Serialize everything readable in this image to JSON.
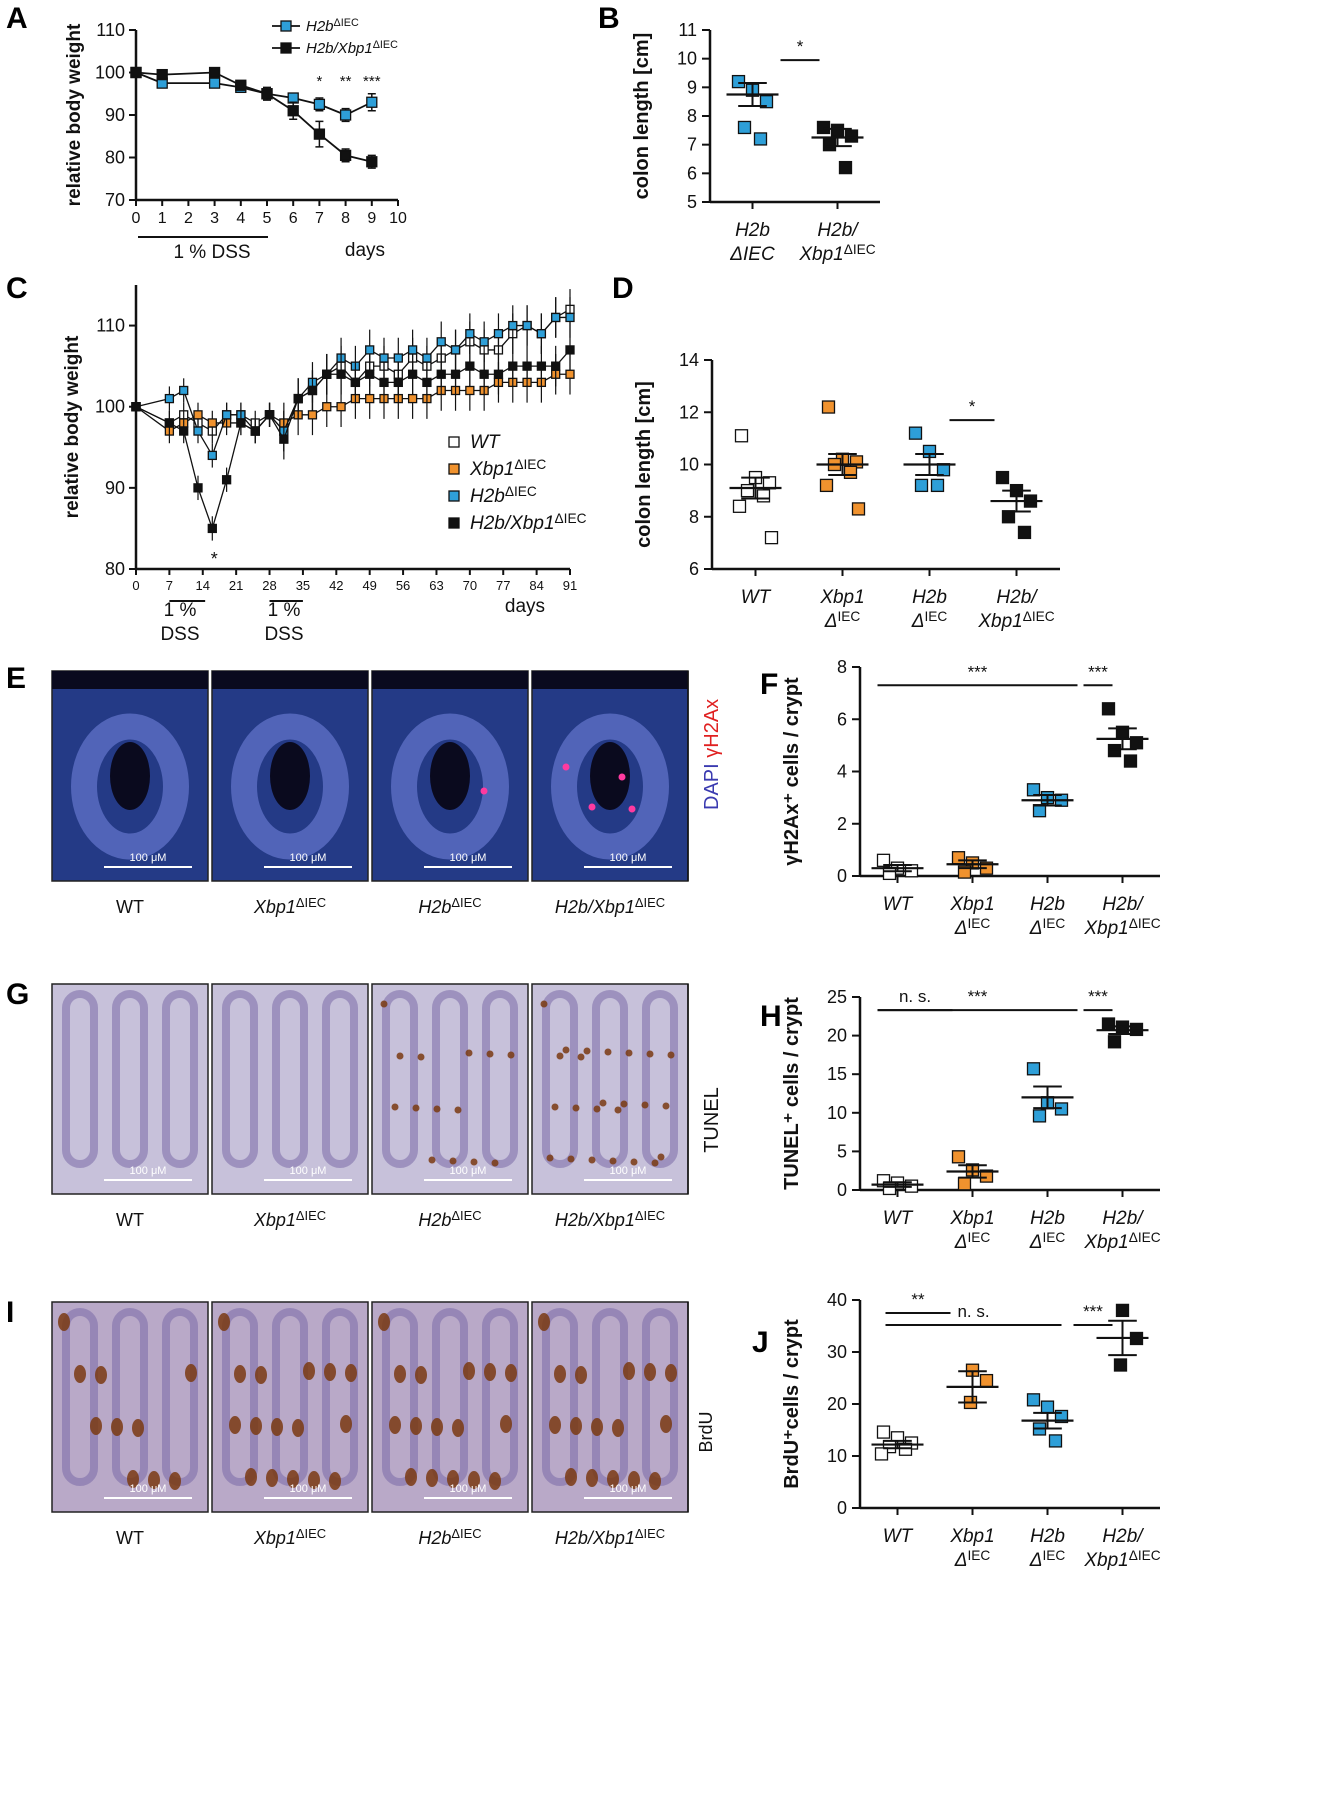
{
  "panel_letters": [
    "A",
    "B",
    "C",
    "D",
    "E",
    "F",
    "G",
    "H",
    "I",
    "J"
  ],
  "legend_a": [
    {
      "label": "H2b",
      "sup": "ΔIEC"
    },
    {
      "label": "H2b/Xbp1",
      "sup": "ΔIEC"
    }
  ],
  "legend_c": [
    {
      "label": "WT",
      "sup": ""
    },
    {
      "label": "Xbp1",
      "sup": "ΔIEC"
    },
    {
      "label": "H2b",
      "sup": "ΔIEC"
    },
    {
      "label": "H2b/Xbp1",
      "sup": "ΔIEC"
    }
  ],
  "colors": {
    "wt": "#ffffff",
    "xbp1": "#f0922e",
    "h2b": "#2e9fd8",
    "double": "#111111"
  },
  "image_labels": {
    "e_row": [
      "WT",
      "Xbp1",
      "H2b",
      "H2b/Xbp1"
    ],
    "sup": "ΔIEC",
    "scale": "100 μM",
    "e_side_blue": "DAPI",
    "e_side_red": "γH2Ax",
    "g_side": "TUNEL",
    "i_side": "BrdU"
  },
  "chart_data": [
    {
      "id": "A",
      "type": "line",
      "title": "",
      "xlabel": "days",
      "ylabel": "relative body weight",
      "xlim": [
        0,
        10
      ],
      "ylim": [
        70,
        110
      ],
      "xticks": [
        0,
        1,
        2,
        3,
        4,
        5,
        6,
        7,
        8,
        9,
        10
      ],
      "yticks": [
        70,
        80,
        90,
        100,
        110
      ],
      "annotation": "1 %  DSS",
      "series": [
        {
          "name": "H2bΔIEC",
          "x": [
            0,
            1,
            3,
            4,
            5,
            6,
            7,
            8,
            9
          ],
          "values": [
            100,
            97.5,
            97.5,
            96.5,
            95,
            94,
            92.5,
            90,
            93
          ],
          "err": [
            0.8,
            1,
            1,
            1,
            1,
            1,
            1.5,
            1.5,
            2
          ]
        },
        {
          "name": "H2b/Xbp1ΔIEC",
          "x": [
            0,
            1,
            3,
            4,
            5,
            6,
            7,
            8,
            9
          ],
          "values": [
            100,
            99.5,
            100,
            97,
            95,
            91,
            85.5,
            80.5,
            79
          ],
          "err": [
            0.8,
            1,
            1,
            1,
            1.5,
            2,
            3,
            1.5,
            1.5
          ]
        }
      ],
      "significance": [
        {
          "x": 7,
          "label": "*"
        },
        {
          "x": 8,
          "label": "**"
        },
        {
          "x": 9,
          "label": "***"
        }
      ]
    },
    {
      "id": "B",
      "type": "scatter",
      "ylabel": "colon length [cm]",
      "ylim": [
        5,
        11
      ],
      "yticks": [
        5,
        6,
        7,
        8,
        9,
        10,
        11
      ],
      "categories": [
        "H2b ΔIEC",
        "H2b/ Xbp1ΔIEC"
      ],
      "groups": [
        {
          "points": [
            9.2,
            8.9,
            8.5,
            7.6,
            7.2
          ],
          "mean": 8.75,
          "sem": 0.4
        },
        {
          "points": [
            7.6,
            7.5,
            7.3,
            7.0,
            6.2
          ],
          "mean": 7.25,
          "sem": 0.3
        }
      ],
      "significance": [
        {
          "from": 0,
          "to": 1,
          "label": "*"
        }
      ]
    },
    {
      "id": "C",
      "type": "line",
      "xlabel": "days",
      "ylabel": "relative body weight",
      "xlim": [
        0,
        91
      ],
      "ylim": [
        80,
        115
      ],
      "xticks": [
        0,
        7,
        14,
        21,
        28,
        35,
        42,
        49,
        56,
        63,
        70,
        77,
        84,
        91
      ],
      "yticks": [
        80,
        90,
        100,
        110
      ],
      "annotations": [
        "1 %",
        "DSS",
        "1 %",
        "DSS"
      ],
      "series": [
        {
          "name": "WT",
          "x": [
            0,
            7,
            10,
            13,
            16,
            19,
            22,
            25,
            28,
            31,
            34,
            37,
            40,
            43,
            46,
            49,
            52,
            55,
            58,
            61,
            64,
            67,
            70,
            73,
            76,
            79,
            82,
            85,
            88,
            91
          ],
          "values": [
            100,
            98,
            99,
            98,
            97,
            99,
            99,
            98,
            99,
            97,
            101,
            102,
            104,
            105,
            103,
            105,
            105,
            104,
            106,
            105,
            106,
            107,
            108,
            107,
            107,
            109,
            110,
            109,
            111,
            112
          ]
        },
        {
          "name": "Xbp1ΔIEC",
          "x": [
            0,
            7,
            10,
            13,
            16,
            19,
            22,
            25,
            28,
            31,
            34,
            37,
            40,
            43,
            46,
            49,
            52,
            55,
            58,
            61,
            64,
            67,
            70,
            73,
            76,
            79,
            82,
            85,
            88,
            91
          ],
          "values": [
            100,
            97,
            98,
            99,
            98,
            98,
            98,
            97,
            99,
            98,
            99,
            99,
            100,
            100,
            101,
            101,
            101,
            101,
            101,
            101,
            102,
            102,
            102,
            102,
            103,
            103,
            103,
            103,
            104,
            104
          ]
        },
        {
          "name": "H2bΔIEC",
          "x": [
            0,
            7,
            10,
            13,
            16,
            19,
            22,
            25,
            28,
            31,
            34,
            37,
            40,
            43,
            46,
            49,
            52,
            55,
            58,
            61,
            64,
            67,
            70,
            73,
            76,
            79,
            82,
            85,
            88,
            91
          ],
          "values": [
            100,
            101,
            102,
            97,
            94,
            99,
            99,
            97,
            99,
            97,
            101,
            103,
            104,
            106,
            105,
            107,
            106,
            106,
            107,
            106,
            108,
            107,
            109,
            108,
            109,
            110,
            110,
            109,
            111,
            111
          ]
        },
        {
          "name": "H2b/Xbp1ΔIEC",
          "x": [
            0,
            7,
            10,
            13,
            16,
            19,
            22,
            25,
            28,
            31,
            34,
            37,
            40,
            43,
            46,
            49,
            52,
            55,
            58,
            61,
            64,
            67,
            70,
            73,
            76,
            79,
            82,
            85,
            88,
            91
          ],
          "values": [
            100,
            98,
            97,
            90,
            85,
            91,
            98,
            97,
            99,
            96,
            101,
            102,
            104,
            104,
            103,
            104,
            103,
            103,
            104,
            103,
            104,
            104,
            105,
            104,
            104,
            105,
            105,
            105,
            105,
            107
          ]
        }
      ],
      "significance": [
        {
          "x": 16,
          "label": "*"
        }
      ]
    },
    {
      "id": "D",
      "type": "scatter",
      "ylabel": "colon length [cm]",
      "ylim": [
        6,
        14
      ],
      "yticks": [
        6,
        8,
        10,
        12,
        14
      ],
      "categories": [
        "WT",
        "Xbp1 ΔIEC",
        "H2b ΔIEC",
        "H2b/ Xbp1ΔIEC"
      ],
      "groups": [
        {
          "points": [
            11.1,
            9.5,
            9.3,
            9.0,
            8.8,
            8.4,
            7.2
          ],
          "mean": 9.1,
          "sem": 0.4
        },
        {
          "points": [
            12.2,
            10.2,
            10.1,
            10.0,
            9.7,
            9.2,
            8.3
          ],
          "mean": 10.0,
          "sem": 0.4
        },
        {
          "points": [
            11.2,
            10.5,
            9.8,
            9.2,
            9.2
          ],
          "mean": 10.0,
          "sem": 0.4
        },
        {
          "points": [
            9.5,
            9.0,
            8.6,
            8.0,
            7.4
          ],
          "mean": 8.6,
          "sem": 0.4
        }
      ],
      "significance": [
        {
          "from": 2,
          "to": 3,
          "label": "*"
        }
      ]
    },
    {
      "id": "F",
      "type": "scatter",
      "ylabel": "γH2Ax⁺ cells / crypt",
      "ylim": [
        0,
        8
      ],
      "yticks": [
        0,
        2,
        4,
        6,
        8
      ],
      "categories": [
        "WT",
        "Xbp1 ΔIEC",
        "H2b ΔIEC",
        "H2b/ Xbp1ΔIEC"
      ],
      "groups": [
        {
          "points": [
            0.6,
            0.3,
            0.2,
            0.1
          ],
          "mean": 0.3,
          "sem": 0.12
        },
        {
          "points": [
            0.7,
            0.5,
            0.3,
            0.15
          ],
          "mean": 0.45,
          "sem": 0.15
        },
        {
          "points": [
            3.3,
            3.0,
            2.9,
            2.5
          ],
          "mean": 2.9,
          "sem": 0.2
        },
        {
          "points": [
            6.4,
            5.5,
            5.1,
            4.8,
            4.4
          ],
          "mean": 5.25,
          "sem": 0.4
        }
      ],
      "significance": [
        {
          "from": 0,
          "to": 2,
          "label": "***"
        },
        {
          "from": 2,
          "to": 3,
          "label": "***"
        }
      ]
    },
    {
      "id": "H",
      "type": "scatter",
      "ylabel": "TUNEL⁺ cells / crypt",
      "ylim": [
        0,
        25
      ],
      "yticks": [
        0,
        5,
        10,
        15,
        20,
        25
      ],
      "categories": [
        "WT",
        "Xbp1 ΔIEC",
        "H2b ΔIEC",
        "H2b/ Xbp1ΔIEC"
      ],
      "groups": [
        {
          "points": [
            1.2,
            0.9,
            0.5,
            0.2
          ],
          "mean": 0.7,
          "sem": 0.3
        },
        {
          "points": [
            4.3,
            2.6,
            1.8,
            0.8
          ],
          "mean": 2.4,
          "sem": 0.8
        },
        {
          "points": [
            15.7,
            11.3,
            10.5,
            9.6
          ],
          "mean": 12.0,
          "sem": 1.4
        },
        {
          "points": [
            21.5,
            21.1,
            20.8,
            19.2
          ],
          "mean": 20.7,
          "sem": 0.5
        }
      ],
      "significance": [
        {
          "from": 0,
          "to": 1,
          "label": "n. s."
        },
        {
          "from": 0,
          "to": 2,
          "label": "***"
        },
        {
          "from": 2,
          "to": 3,
          "label": "***"
        }
      ]
    },
    {
      "id": "J",
      "type": "scatter",
      "ylabel": "BrdU⁺cells / crypt",
      "ylim": [
        0,
        40
      ],
      "yticks": [
        0,
        10,
        20,
        30,
        40
      ],
      "categories": [
        "WT",
        "Xbp1 ΔIEC",
        "H2b ΔIEC",
        "H2b/ Xbp1ΔIEC"
      ],
      "groups": [
        {
          "points": [
            14.6,
            13.5,
            12.5,
            11.8,
            11.3,
            10.4
          ],
          "mean": 12.2,
          "sem": 0.7
        },
        {
          "points": [
            26.5,
            24.5,
            20.3
          ],
          "mean": 23.3,
          "sem": 3
        },
        {
          "points": [
            20.8,
            19.4,
            17.6,
            15.2,
            12.9
          ],
          "mean": 16.8,
          "sem": 1.5
        },
        {
          "points": [
            38.0,
            32.6,
            27.5
          ],
          "mean": 32.7,
          "sem": 3.3
        }
      ],
      "significance": [
        {
          "from": 0,
          "to": 1,
          "label": "**"
        },
        {
          "from": 0,
          "to": 2,
          "label": "n. s."
        },
        {
          "from": 2,
          "to": 3,
          "label": "***"
        }
      ]
    }
  ]
}
